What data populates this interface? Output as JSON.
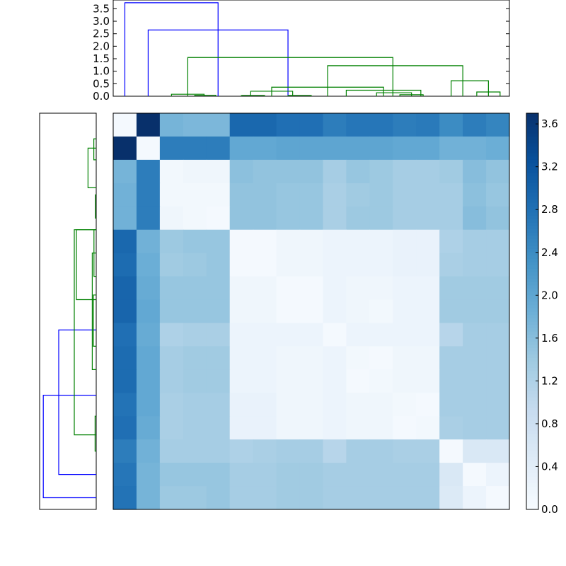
{
  "chart_data": [
    {
      "type": "dendrogram",
      "orientation": "top",
      "yticks": [
        "0.0",
        "0.5",
        "1.0",
        "1.5",
        "2.0",
        "2.5",
        "3.0",
        "3.5"
      ],
      "ylim": [
        0,
        3.85
      ],
      "n_leaves": 17,
      "colors": {
        "upper": "#0000ff",
        "cluster": "#008000"
      },
      "links": [
        {
          "x1": 0.5,
          "x2": 4.5,
          "h": 3.74,
          "color": "upper"
        },
        {
          "x1": 1.5,
          "x2": 7.5,
          "h": 2.65,
          "color": "upper"
        },
        {
          "x1": 3.2,
          "x2": 12.0,
          "h": 1.55,
          "color": "cluster"
        },
        {
          "x1": 9.2,
          "x2": 15.0,
          "h": 1.22,
          "color": "cluster"
        },
        {
          "x1": 14.5,
          "x2": 16.1,
          "h": 0.62,
          "color": "cluster"
        },
        {
          "x1": 15.6,
          "x2": 16.6,
          "h": 0.17,
          "color": "cluster"
        },
        {
          "x1": 6.8,
          "x2": 11.6,
          "h": 0.36,
          "color": "cluster"
        },
        {
          "x1": 5.9,
          "x2": 7.7,
          "h": 0.2,
          "color": "cluster"
        },
        {
          "x1": 10.0,
          "x2": 13.2,
          "h": 0.24,
          "color": "cluster"
        },
        {
          "x1": 11.3,
          "x2": 12.8,
          "h": 0.14,
          "color": "cluster"
        },
        {
          "x1": 12.3,
          "x2": 13.3,
          "h": 0.06,
          "color": "cluster"
        },
        {
          "x1": 2.5,
          "x2": 3.9,
          "h": 0.08,
          "color": "cluster"
        },
        {
          "x1": 3.5,
          "x2": 4.4,
          "h": 0.04,
          "color": "cluster"
        },
        {
          "x1": 5.5,
          "x2": 6.5,
          "h": 0.03,
          "color": "cluster"
        },
        {
          "x1": 7.5,
          "x2": 8.5,
          "h": 0.03,
          "color": "cluster"
        }
      ]
    },
    {
      "type": "dendrogram",
      "orientation": "left",
      "n_leaves": 17,
      "colors": {
        "upper": "#0000ff",
        "cluster": "#008000"
      },
      "links": [
        {
          "y1": 0.5,
          "y2": 4.9,
          "h": 3.74,
          "color": "upper"
        },
        {
          "y1": 1.5,
          "y2": 7.7,
          "h": 2.65,
          "color": "upper"
        },
        {
          "y1": 3.2,
          "y2": 12.0,
          "h": 1.55,
          "color": "cluster"
        },
        {
          "y1": 9.0,
          "y2": 12.0,
          "h": 1.4,
          "color": "cluster"
        },
        {
          "y1": 13.8,
          "y2": 15.5,
          "h": 0.58,
          "color": "cluster"
        },
        {
          "y1": 15.0,
          "y2": 15.9,
          "h": 0.17,
          "color": "cluster"
        },
        {
          "y1": 6.0,
          "y2": 11.0,
          "h": 0.28,
          "color": "cluster"
        },
        {
          "y1": 7.0,
          "y2": 9.2,
          "h": 0.2,
          "color": "cluster"
        },
        {
          "y1": 10.0,
          "y2": 12.0,
          "h": 0.16,
          "color": "cluster"
        },
        {
          "y1": 2.5,
          "y2": 4.0,
          "h": 0.08,
          "color": "cluster"
        },
        {
          "y1": 12.5,
          "y2": 13.5,
          "h": 0.06,
          "color": "cluster"
        }
      ]
    },
    {
      "type": "heatmap",
      "colormap": "Blues",
      "rows": 17,
      "cols": 17,
      "vmin": 0,
      "vmax": 3.7,
      "values": [
        [
          0.05,
          3.7,
          1.75,
          1.7,
          1.7,
          2.9,
          2.9,
          2.8,
          2.8,
          2.6,
          2.7,
          2.7,
          2.6,
          2.65,
          2.4,
          2.6,
          2.5
        ],
        [
          3.7,
          0.05,
          2.6,
          2.6,
          2.6,
          1.95,
          1.95,
          2.0,
          2.0,
          2.0,
          2.0,
          2.0,
          1.95,
          1.95,
          1.8,
          1.8,
          1.85
        ],
        [
          1.75,
          2.6,
          0.1,
          0.15,
          0.15,
          1.55,
          1.5,
          1.5,
          1.5,
          1.3,
          1.45,
          1.4,
          1.3,
          1.3,
          1.35,
          1.6,
          1.5
        ],
        [
          1.8,
          2.6,
          0.1,
          0.1,
          0.1,
          1.5,
          1.5,
          1.45,
          1.45,
          1.25,
          1.35,
          1.4,
          1.3,
          1.3,
          1.3,
          1.55,
          1.45
        ],
        [
          1.8,
          2.6,
          0.15,
          0.1,
          0.05,
          1.5,
          1.5,
          1.45,
          1.45,
          1.25,
          1.4,
          1.4,
          1.3,
          1.3,
          1.3,
          1.6,
          1.5
        ],
        [
          2.9,
          1.8,
          1.4,
          1.45,
          1.45,
          0.05,
          0.05,
          0.15,
          0.15,
          0.2,
          0.2,
          0.2,
          0.25,
          0.25,
          1.2,
          1.3,
          1.3
        ],
        [
          2.85,
          1.85,
          1.35,
          1.4,
          1.45,
          0.05,
          0.05,
          0.15,
          0.15,
          0.2,
          0.2,
          0.2,
          0.25,
          0.25,
          1.25,
          1.3,
          1.3
        ],
        [
          2.95,
          1.9,
          1.45,
          1.45,
          1.45,
          0.15,
          0.15,
          0.05,
          0.05,
          0.2,
          0.15,
          0.15,
          0.2,
          0.2,
          1.35,
          1.35,
          1.35
        ],
        [
          2.95,
          1.95,
          1.45,
          1.45,
          1.45,
          0.15,
          0.15,
          0.05,
          0.05,
          0.2,
          0.15,
          0.1,
          0.2,
          0.2,
          1.35,
          1.35,
          1.35
        ],
        [
          2.8,
          1.9,
          1.2,
          1.25,
          1.25,
          0.2,
          0.2,
          0.2,
          0.2,
          0.05,
          0.2,
          0.2,
          0.2,
          0.2,
          1.1,
          1.3,
          1.3
        ],
        [
          2.85,
          1.95,
          1.3,
          1.35,
          1.35,
          0.2,
          0.2,
          0.15,
          0.15,
          0.2,
          0.1,
          0.05,
          0.15,
          0.15,
          1.3,
          1.3,
          1.3
        ],
        [
          2.85,
          1.95,
          1.3,
          1.35,
          1.35,
          0.2,
          0.2,
          0.15,
          0.15,
          0.2,
          0.05,
          0.1,
          0.15,
          0.15,
          1.3,
          1.3,
          1.3
        ],
        [
          2.75,
          1.95,
          1.25,
          1.3,
          1.3,
          0.25,
          0.25,
          0.15,
          0.15,
          0.2,
          0.15,
          0.15,
          0.1,
          0.05,
          1.3,
          1.3,
          1.3
        ],
        [
          2.8,
          1.9,
          1.25,
          1.3,
          1.3,
          0.25,
          0.25,
          0.15,
          0.15,
          0.2,
          0.15,
          0.15,
          0.05,
          0.1,
          1.25,
          1.3,
          1.3
        ],
        [
          2.6,
          1.8,
          1.3,
          1.3,
          1.3,
          1.2,
          1.25,
          1.3,
          1.3,
          1.1,
          1.3,
          1.3,
          1.25,
          1.25,
          0.05,
          0.55,
          0.55
        ],
        [
          2.7,
          1.75,
          1.45,
          1.45,
          1.45,
          1.3,
          1.3,
          1.35,
          1.35,
          1.3,
          1.3,
          1.3,
          1.3,
          1.3,
          0.55,
          0.05,
          0.2
        ],
        [
          2.75,
          1.75,
          1.4,
          1.4,
          1.45,
          1.3,
          1.3,
          1.35,
          1.35,
          1.3,
          1.3,
          1.3,
          1.3,
          1.3,
          0.5,
          0.2,
          0.05
        ]
      ]
    },
    {
      "type": "colorbar",
      "ticks": [
        "0.0",
        "0.4",
        "0.8",
        "1.2",
        "1.6",
        "2.0",
        "2.4",
        "2.8",
        "3.2",
        "3.6"
      ],
      "tick_values": [
        0.0,
        0.4,
        0.8,
        1.2,
        1.6,
        2.0,
        2.4,
        2.8,
        3.2,
        3.6
      ],
      "vmin": 0,
      "vmax": 3.7
    }
  ]
}
